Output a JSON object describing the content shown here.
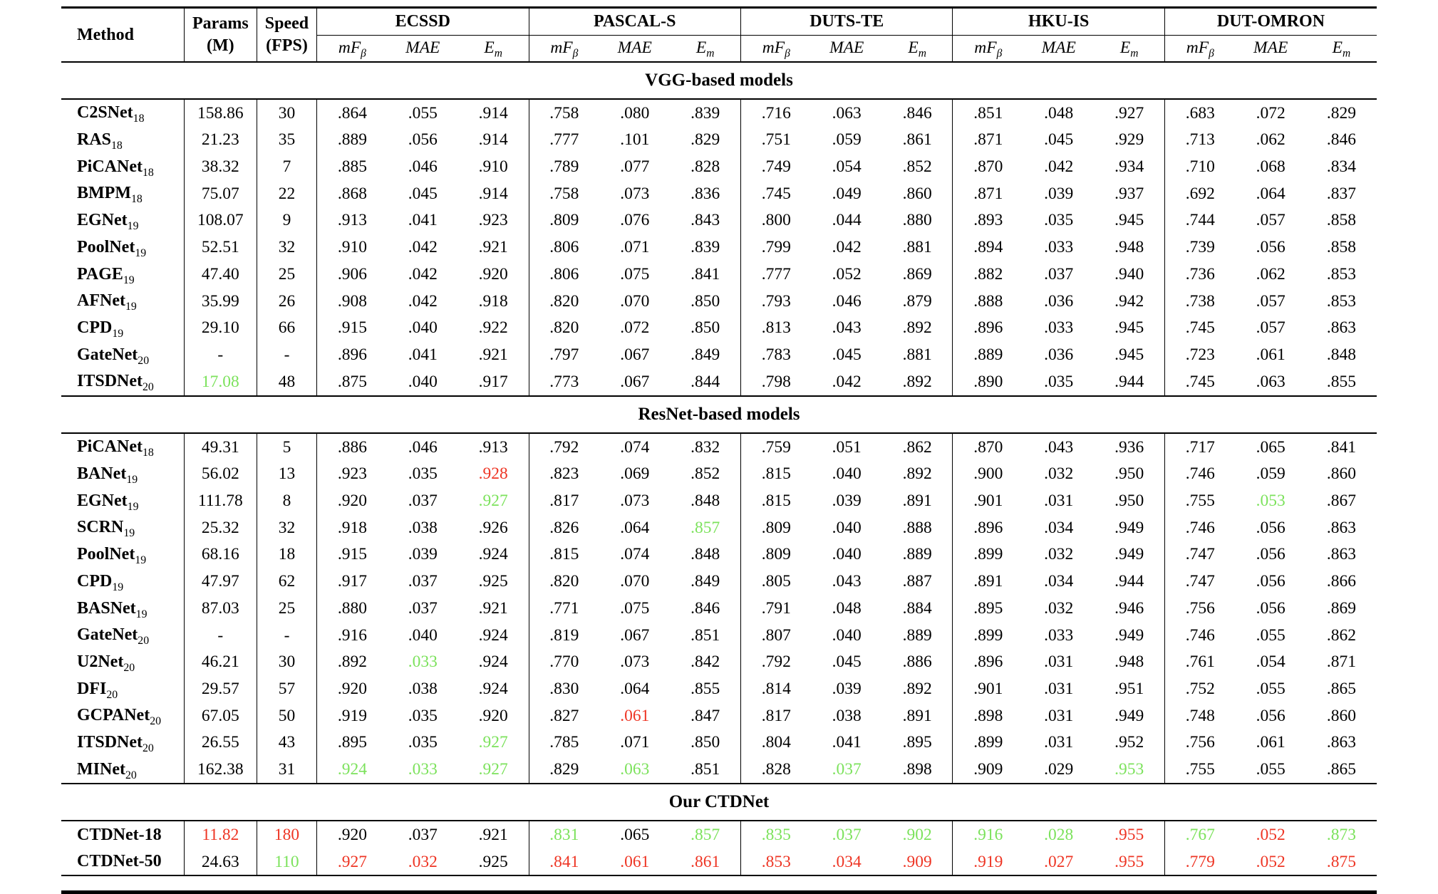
{
  "table": {
    "columns": {
      "method": "Method",
      "params": "Params",
      "params_unit": "(M)",
      "speed": "Speed",
      "speed_unit": "(FPS)"
    },
    "datasets": [
      "ECSSD",
      "PASCAL-S",
      "DUTS-TE",
      "HKU-IS",
      "DUT-OMRON"
    ],
    "metrics": [
      {
        "main": "mF",
        "sub": "β"
      },
      {
        "main": "MAE",
        "sub": ""
      },
      {
        "main": "E",
        "sub": "m"
      }
    ],
    "colors": {
      "best": "#ee3524",
      "second": "#7ce25c"
    },
    "sections": [
      {
        "title": "VGG-based models",
        "rows": [
          {
            "method": "C2SNet",
            "sub": "18",
            "params": "158.86",
            "speed": "30",
            "values": [
              ".864",
              ".055",
              ".914",
              ".758",
              ".080",
              ".839",
              ".716",
              ".063",
              ".846",
              ".851",
              ".048",
              ".927",
              ".683",
              ".072",
              ".829"
            ],
            "colors": {}
          },
          {
            "method": "RAS",
            "sub": "18",
            "params": "21.23",
            "speed": "35",
            "values": [
              ".889",
              ".056",
              ".914",
              ".777",
              ".101",
              ".829",
              ".751",
              ".059",
              ".861",
              ".871",
              ".045",
              ".929",
              ".713",
              ".062",
              ".846"
            ],
            "colors": {}
          },
          {
            "method": "PiCANet",
            "sub": "18",
            "params": "38.32",
            "speed": "7",
            "values": [
              ".885",
              ".046",
              ".910",
              ".789",
              ".077",
              ".828",
              ".749",
              ".054",
              ".852",
              ".870",
              ".042",
              ".934",
              ".710",
              ".068",
              ".834"
            ],
            "colors": {}
          },
          {
            "method": "BMPM",
            "sub": "18",
            "params": "75.07",
            "speed": "22",
            "values": [
              ".868",
              ".045",
              ".914",
              ".758",
              ".073",
              ".836",
              ".745",
              ".049",
              ".860",
              ".871",
              ".039",
              ".937",
              ".692",
              ".064",
              ".837"
            ],
            "colors": {}
          },
          {
            "method": "EGNet",
            "sub": "19",
            "params": "108.07",
            "speed": "9",
            "values": [
              ".913",
              ".041",
              ".923",
              ".809",
              ".076",
              ".843",
              ".800",
              ".044",
              ".880",
              ".893",
              ".035",
              ".945",
              ".744",
              ".057",
              ".858"
            ],
            "colors": {}
          },
          {
            "method": "PoolNet",
            "sub": "19",
            "params": "52.51",
            "speed": "32",
            "values": [
              ".910",
              ".042",
              ".921",
              ".806",
              ".071",
              ".839",
              ".799",
              ".042",
              ".881",
              ".894",
              ".033",
              ".948",
              ".739",
              ".056",
              ".858"
            ],
            "colors": {}
          },
          {
            "method": "PAGE",
            "sub": "19",
            "params": "47.40",
            "speed": "25",
            "values": [
              ".906",
              ".042",
              ".920",
              ".806",
              ".075",
              ".841",
              ".777",
              ".052",
              ".869",
              ".882",
              ".037",
              ".940",
              ".736",
              ".062",
              ".853"
            ],
            "colors": {}
          },
          {
            "method": "AFNet",
            "sub": "19",
            "params": "35.99",
            "speed": "26",
            "values": [
              ".908",
              ".042",
              ".918",
              ".820",
              ".070",
              ".850",
              ".793",
              ".046",
              ".879",
              ".888",
              ".036",
              ".942",
              ".738",
              ".057",
              ".853"
            ],
            "colors": {}
          },
          {
            "method": "CPD",
            "sub": "19",
            "params": "29.10",
            "speed": "66",
            "values": [
              ".915",
              ".040",
              ".922",
              ".820",
              ".072",
              ".850",
              ".813",
              ".043",
              ".892",
              ".896",
              ".033",
              ".945",
              ".745",
              ".057",
              ".863"
            ],
            "colors": {}
          },
          {
            "method": "GateNet",
            "sub": "20",
            "params": "-",
            "speed": "-",
            "values": [
              ".896",
              ".041",
              ".921",
              ".797",
              ".067",
              ".849",
              ".783",
              ".045",
              ".881",
              ".889",
              ".036",
              ".945",
              ".723",
              ".061",
              ".848"
            ],
            "colors": {}
          },
          {
            "method": "ITSDNet",
            "sub": "20",
            "params": "17.08",
            "params_color": "g",
            "speed": "48",
            "values": [
              ".875",
              ".040",
              ".917",
              ".773",
              ".067",
              ".844",
              ".798",
              ".042",
              ".892",
              ".890",
              ".035",
              ".944",
              ".745",
              ".063",
              ".855"
            ],
            "colors": {}
          }
        ]
      },
      {
        "title": "ResNet-based models",
        "rows": [
          {
            "method": "PiCANet",
            "sub": "18",
            "params": "49.31",
            "speed": "5",
            "values": [
              ".886",
              ".046",
              ".913",
              ".792",
              ".074",
              ".832",
              ".759",
              ".051",
              ".862",
              ".870",
              ".043",
              ".936",
              ".717",
              ".065",
              ".841"
            ],
            "colors": {}
          },
          {
            "method": "BANet",
            "sub": "19",
            "params": "56.02",
            "speed": "13",
            "values": [
              ".923",
              ".035",
              ".928",
              ".823",
              ".069",
              ".852",
              ".815",
              ".040",
              ".892",
              ".900",
              ".032",
              ".950",
              ".746",
              ".059",
              ".860"
            ],
            "colors": {
              "2": "r"
            }
          },
          {
            "method": "EGNet",
            "sub": "19",
            "params": "111.78",
            "speed": "8",
            "values": [
              ".920",
              ".037",
              ".927",
              ".817",
              ".073",
              ".848",
              ".815",
              ".039",
              ".891",
              ".901",
              ".031",
              ".950",
              ".755",
              ".053",
              ".867"
            ],
            "colors": {
              "2": "g",
              "13": "g"
            }
          },
          {
            "method": "SCRN",
            "sub": "19",
            "params": "25.32",
            "speed": "32",
            "values": [
              ".918",
              ".038",
              ".926",
              ".826",
              ".064",
              ".857",
              ".809",
              ".040",
              ".888",
              ".896",
              ".034",
              ".949",
              ".746",
              ".056",
              ".863"
            ],
            "colors": {
              "5": "g"
            }
          },
          {
            "method": "PoolNet",
            "sub": "19",
            "params": "68.16",
            "speed": "18",
            "values": [
              ".915",
              ".039",
              ".924",
              ".815",
              ".074",
              ".848",
              ".809",
              ".040",
              ".889",
              ".899",
              ".032",
              ".949",
              ".747",
              ".056",
              ".863"
            ],
            "colors": {}
          },
          {
            "method": "CPD",
            "sub": "19",
            "params": "47.97",
            "speed": "62",
            "values": [
              ".917",
              ".037",
              ".925",
              ".820",
              ".070",
              ".849",
              ".805",
              ".043",
              ".887",
              ".891",
              ".034",
              ".944",
              ".747",
              ".056",
              ".866"
            ],
            "colors": {}
          },
          {
            "method": "BASNet",
            "sub": "19",
            "params": "87.03",
            "speed": "25",
            "values": [
              ".880",
              ".037",
              ".921",
              ".771",
              ".075",
              ".846",
              ".791",
              ".048",
              ".884",
              ".895",
              ".032",
              ".946",
              ".756",
              ".056",
              ".869"
            ],
            "colors": {}
          },
          {
            "method": "GateNet",
            "sub": "20",
            "params": "-",
            "speed": "-",
            "values": [
              ".916",
              ".040",
              ".924",
              ".819",
              ".067",
              ".851",
              ".807",
              ".040",
              ".889",
              ".899",
              ".033",
              ".949",
              ".746",
              ".055",
              ".862"
            ],
            "colors": {}
          },
          {
            "method": "U2Net",
            "sub": "20",
            "params": "46.21",
            "speed": "30",
            "values": [
              ".892",
              ".033",
              ".924",
              ".770",
              ".073",
              ".842",
              ".792",
              ".045",
              ".886",
              ".896",
              ".031",
              ".948",
              ".761",
              ".054",
              ".871"
            ],
            "colors": {
              "1": "g"
            }
          },
          {
            "method": "DFI",
            "sub": "20",
            "params": "29.57",
            "speed": "57",
            "values": [
              ".920",
              ".038",
              ".924",
              ".830",
              ".064",
              ".855",
              ".814",
              ".039",
              ".892",
              ".901",
              ".031",
              ".951",
              ".752",
              ".055",
              ".865"
            ],
            "colors": {}
          },
          {
            "method": "GCPANet",
            "sub": "20",
            "params": "67.05",
            "speed": "50",
            "values": [
              ".919",
              ".035",
              ".920",
              ".827",
              ".061",
              ".847",
              ".817",
              ".038",
              ".891",
              ".898",
              ".031",
              ".949",
              ".748",
              ".056",
              ".860"
            ],
            "colors": {
              "4": "r"
            }
          },
          {
            "method": "ITSDNet",
            "sub": "20",
            "params": "26.55",
            "speed": "43",
            "values": [
              ".895",
              ".035",
              ".927",
              ".785",
              ".071",
              ".850",
              ".804",
              ".041",
              ".895",
              ".899",
              ".031",
              ".952",
              ".756",
              ".061",
              ".863"
            ],
            "colors": {
              "2": "g"
            }
          },
          {
            "method": "MINet",
            "sub": "20",
            "params": "162.38",
            "speed": "31",
            "values": [
              ".924",
              ".033",
              ".927",
              ".829",
              ".063",
              ".851",
              ".828",
              ".037",
              ".898",
              ".909",
              ".029",
              ".953",
              ".755",
              ".055",
              ".865"
            ],
            "colors": {
              "0": "g",
              "1": "g",
              "2": "g",
              "4": "g",
              "7": "g",
              "11": "g"
            }
          }
        ]
      },
      {
        "title": "Our CTDNet",
        "rows": [
          {
            "method": "CTDNet-18",
            "sub": "",
            "params": "11.82",
            "params_color": "r",
            "speed": "180",
            "speed_color": "r",
            "values": [
              ".920",
              ".037",
              ".921",
              ".831",
              ".065",
              ".857",
              ".835",
              ".037",
              ".902",
              ".916",
              ".028",
              ".955",
              ".767",
              ".052",
              ".873"
            ],
            "colors": {
              "3": "g",
              "5": "g",
              "6": "g",
              "7": "g",
              "8": "g",
              "9": "g",
              "10": "g",
              "11": "r",
              "12": "g",
              "13": "r",
              "14": "g"
            }
          },
          {
            "method": "CTDNet-50",
            "sub": "",
            "params": "24.63",
            "speed": "110",
            "speed_color": "g",
            "values": [
              ".927",
              ".032",
              ".925",
              ".841",
              ".061",
              ".861",
              ".853",
              ".034",
              ".909",
              ".919",
              ".027",
              ".955",
              ".779",
              ".052",
              ".875"
            ],
            "colors": {
              "0": "r",
              "1": "r",
              "3": "r",
              "4": "r",
              "5": "r",
              "6": "r",
              "7": "r",
              "8": "r",
              "9": "r",
              "10": "r",
              "11": "r",
              "12": "r",
              "13": "r",
              "14": "r"
            }
          }
        ]
      }
    ]
  }
}
